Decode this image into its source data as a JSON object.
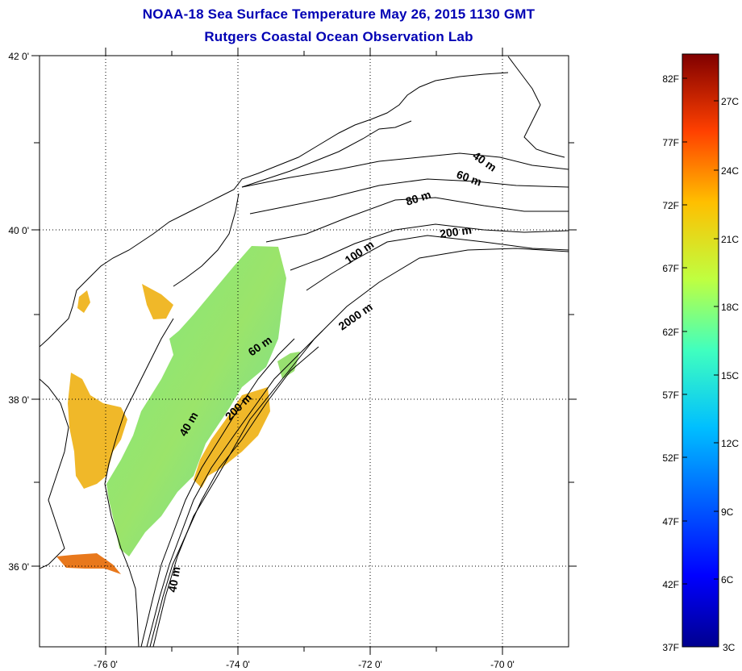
{
  "header": {
    "title": "NOAA-18 Sea Surface Temperature May 26, 2015 1130 GMT",
    "subtitle": "Rutgers Coastal Ocean Observation Lab"
  },
  "map": {
    "lat_labels": [
      "42 0'",
      "40 0'",
      "38 0'",
      "36 0'"
    ],
    "lon_labels": [
      "-76 0'",
      "-74 0'",
      "-72 0'",
      "-70 0'"
    ],
    "depth_labels": [
      "40 m",
      "60 m",
      "80 m",
      "200 m",
      "100 m",
      "2000 m",
      "60 m",
      "200 m",
      "40 m",
      "40 m"
    ]
  },
  "colorbar": {
    "f_labels": [
      "82F",
      "77F",
      "72F",
      "67F",
      "62F",
      "57F",
      "52F",
      "47F",
      "42F",
      "37F"
    ],
    "c_labels": [
      "27C",
      "24C",
      "21C",
      "18C",
      "15C",
      "12C",
      "9C",
      "6C",
      "3C"
    ]
  },
  "colors": {
    "title": "#0000b4",
    "land": "#ffffff",
    "coast": "#000000"
  }
}
